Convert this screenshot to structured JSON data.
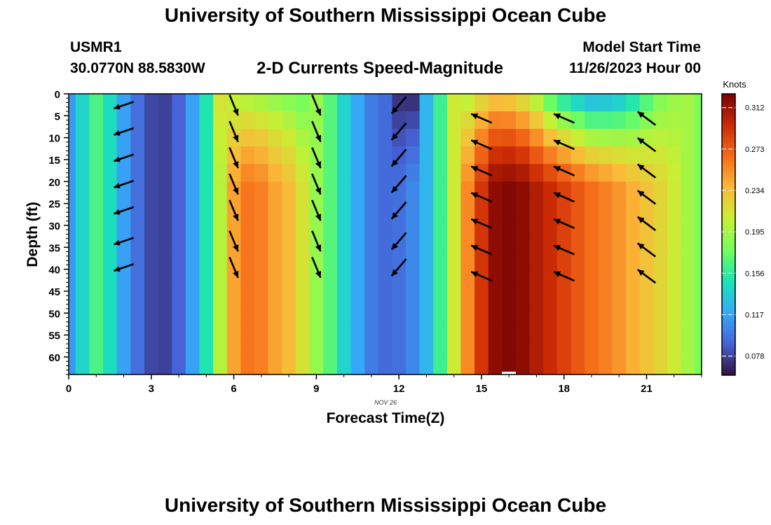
{
  "header": {
    "title": "University of Southern Mississippi Ocean Cube",
    "station_id": "USMR1",
    "station_coords": "30.0770N  88.5830W",
    "chart_title": "2-D Currents Speed-Magnitude",
    "start_label": "Model Start Time",
    "start_time": "11/26/2023 Hour 00"
  },
  "footer": {
    "title": "University of Southern Mississippi Ocean Cube"
  },
  "chart_data": {
    "type": "heatmap",
    "xlabel": "Forecast Time(Z)",
    "ylabel": "Depth (ft)",
    "date_label": "NOV 26",
    "xlim": [
      0,
      23
    ],
    "ylim": [
      0,
      64
    ],
    "y_inverted": true,
    "xticks": [
      0,
      3,
      6,
      9,
      12,
      15,
      18,
      21
    ],
    "yticks": [
      0,
      5,
      10,
      15,
      20,
      25,
      30,
      35,
      40,
      45,
      50,
      55,
      60
    ],
    "colorbar": {
      "unit": "Knots",
      "min": 0.06,
      "max": 0.325,
      "ticks": [
        "0.078",
        "0.117",
        "0.156",
        "0.195",
        "0.234",
        "0.273",
        "0.312"
      ]
    },
    "colormap": [
      "#30123b",
      "#4662d7",
      "#36aaf9",
      "#1ae4b6",
      "#72fe5e",
      "#c8ef34",
      "#faba39",
      "#f66b19",
      "#ca2a04",
      "#7a0403"
    ],
    "speed_columns": [
      {
        "x": 0.0,
        "speed": 0.112
      },
      {
        "x": 0.5,
        "speed": 0.14
      },
      {
        "x": 1.0,
        "speed": 0.165
      },
      {
        "x": 1.5,
        "speed": 0.145
      },
      {
        "x": 2.0,
        "speed": 0.115
      },
      {
        "x": 2.5,
        "speed": 0.095
      },
      {
        "x": 3.0,
        "speed": 0.08
      },
      {
        "x": 3.5,
        "speed": 0.078
      },
      {
        "x": 4.0,
        "speed": 0.09
      },
      {
        "x": 4.5,
        "speed": 0.115
      },
      {
        "x": 5.0,
        "speed": 0.15
      },
      {
        "x": 5.5,
        "speed": 0.2,
        "surface": 0.215
      },
      {
        "x": 6.0,
        "speed": 0.245,
        "surface": 0.2
      },
      {
        "x": 6.5,
        "speed": 0.262,
        "surface": 0.195
      },
      {
        "x": 7.0,
        "speed": 0.258,
        "surface": 0.19
      },
      {
        "x": 7.5,
        "speed": 0.245,
        "surface": 0.185
      },
      {
        "x": 8.0,
        "speed": 0.235,
        "surface": 0.18
      },
      {
        "x": 8.5,
        "speed": 0.215,
        "surface": 0.175
      },
      {
        "x": 9.0,
        "speed": 0.19
      },
      {
        "x": 9.5,
        "speed": 0.168
      },
      {
        "x": 10.0,
        "speed": 0.14
      },
      {
        "x": 10.5,
        "speed": 0.118
      },
      {
        "x": 11.0,
        "speed": 0.1
      },
      {
        "x": 11.5,
        "speed": 0.093
      },
      {
        "x": 12.0,
        "speed": 0.095,
        "surface": 0.07
      },
      {
        "x": 12.5,
        "speed": 0.105,
        "surface": 0.068
      },
      {
        "x": 13.0,
        "speed": 0.125
      },
      {
        "x": 13.5,
        "speed": 0.16
      },
      {
        "x": 14.0,
        "speed": 0.21
      },
      {
        "x": 14.5,
        "speed": 0.255,
        "surface": 0.2
      },
      {
        "x": 15.0,
        "speed": 0.29,
        "surface": 0.215
      },
      {
        "x": 15.5,
        "speed": 0.318,
        "surface": 0.225
      },
      {
        "x": 16.0,
        "speed": 0.322,
        "surface": 0.222
      },
      {
        "x": 16.5,
        "speed": 0.318,
        "surface": 0.21
      },
      {
        "x": 17.0,
        "speed": 0.305,
        "surface": 0.19
      },
      {
        "x": 17.5,
        "speed": 0.295,
        "surface": 0.16
      },
      {
        "x": 18.0,
        "speed": 0.285,
        "surface": 0.14
      },
      {
        "x": 18.5,
        "speed": 0.275,
        "surface": 0.125
      },
      {
        "x": 19.0,
        "speed": 0.265,
        "surface": 0.115
      },
      {
        "x": 19.5,
        "speed": 0.258,
        "surface": 0.118
      },
      {
        "x": 20.0,
        "speed": 0.25,
        "surface": 0.125
      },
      {
        "x": 20.5,
        "speed": 0.24,
        "surface": 0.14
      },
      {
        "x": 21.0,
        "speed": 0.232,
        "surface": 0.16
      },
      {
        "x": 21.5,
        "speed": 0.222,
        "surface": 0.18
      },
      {
        "x": 22.0,
        "speed": 0.21,
        "surface": 0.19
      },
      {
        "x": 22.5,
        "speed": 0.195
      },
      {
        "x": 23.0,
        "speed": 0.18
      }
    ],
    "vectors": [
      {
        "time": 2,
        "direction": "west-southwest",
        "depths": [
          1,
          7,
          13,
          19,
          25,
          32,
          38
        ]
      },
      {
        "time": 6,
        "direction": "south-southeast",
        "depths": [
          1,
          7,
          13,
          19,
          25,
          32,
          38
        ]
      },
      {
        "time": 9,
        "direction": "south-southeast",
        "depths": [
          1,
          7,
          13,
          19,
          25,
          32,
          38
        ]
      },
      {
        "time": 12,
        "direction": "southwest",
        "depths": [
          1,
          7,
          13,
          19,
          25,
          32,
          38
        ]
      },
      {
        "time": 15,
        "direction": "west-northwest",
        "depths": [
          4,
          10,
          16,
          22,
          28,
          34,
          40
        ]
      },
      {
        "time": 18,
        "direction": "west-northwest",
        "depths": [
          4,
          10,
          16,
          22,
          28,
          34,
          40
        ]
      },
      {
        "time": 21,
        "direction": "northwest",
        "depths": [
          4,
          10,
          16,
          22,
          28,
          34,
          40
        ]
      }
    ]
  }
}
